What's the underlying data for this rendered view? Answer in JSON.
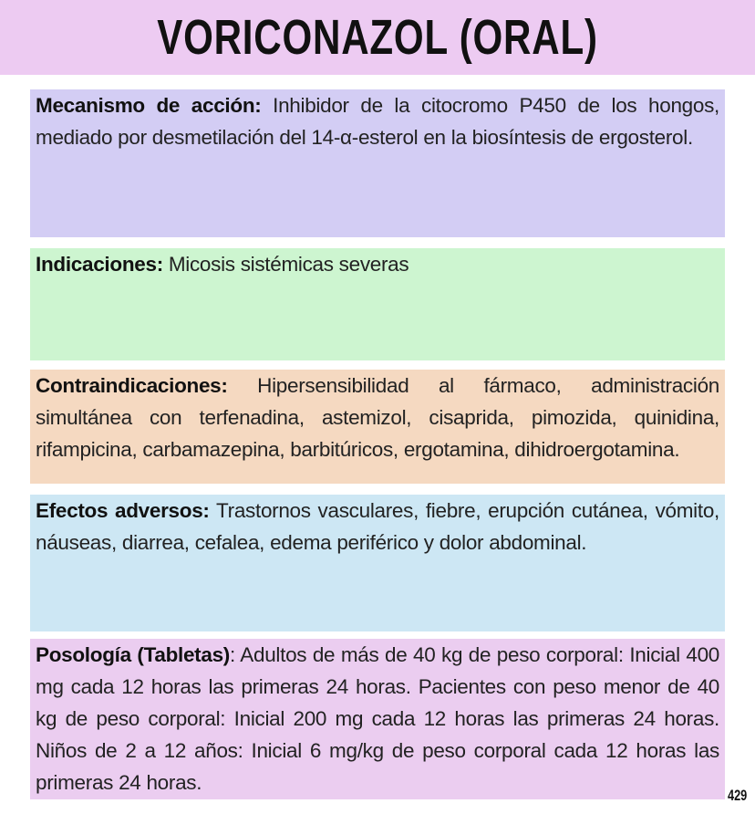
{
  "title": "VORICONAZOL (ORAL)",
  "sections": [
    {
      "label": "Mecanismo de acción:",
      "text": " Inhibidor de la citocromo P450 de los hongos, mediado por desmetilación del 14-α-esterol en la biosíntesis de ergosterol.",
      "color": "#d3cdf4"
    },
    {
      "label": "Indicaciones:",
      "text": " Micosis sistémicas severas",
      "color": "#cdf5d0"
    },
    {
      "label": "Contraindicaciones:",
      "text": " Hipersensibilidad al fármaco, administración simultánea con terfenadina, astemizol, cisaprida, pimozida, quinidina, rifampicina, carbamazepina, barbitúricos, ergotamina, dihidroergotamina.",
      "color": "#f5d9c1"
    },
    {
      "label": "Efectos adversos:",
      "text": " Trastornos vasculares, fiebre, erupción cutánea, vómito, náuseas, diarrea, cefalea, edema periférico y dolor abdominal.",
      "color": "#cde7f4"
    },
    {
      "label": "Posología (Tabletas)",
      "text": ": Adultos de más de 40 kg de peso corporal: Inicial 400 mg cada 12 horas las primeras 24 horas. Pacientes con peso menor de 40 kg de peso corporal: Inicial 200 mg cada 12 horas las primeras 24 horas. Niños de 2 a 12 años: Inicial 6 mg/kg de peso corporal cada 12 horas las primeras 24 horas.",
      "color": "#ebcdf0"
    }
  ],
  "page_number": "429"
}
